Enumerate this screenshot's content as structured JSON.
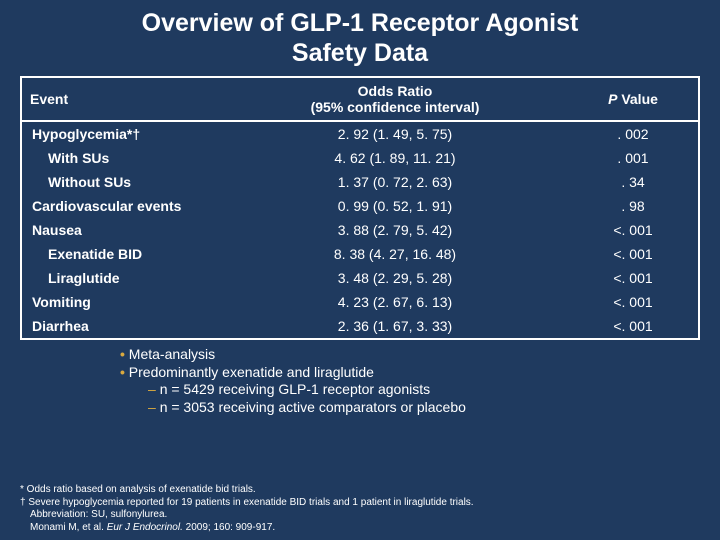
{
  "title_line1": "Overview of GLP-1 Receptor Agonist",
  "title_line2": "Safety Data",
  "table": {
    "headers": {
      "event": "Event",
      "or_line1": "Odds Ratio",
      "or_line2": "(95% confidence interval)",
      "p_prefix": "P",
      "p_suffix": " Value"
    },
    "rows": [
      {
        "event": "Hypoglycemia*†",
        "or": "2. 92 (1. 49, 5. 75)",
        "p": ". 002",
        "indent": 0
      },
      {
        "event": "With SUs",
        "or": "4. 62 (1. 89, 11. 21)",
        "p": ". 001",
        "indent": 1
      },
      {
        "event": "Without SUs",
        "or": "1. 37 (0. 72, 2. 63)",
        "p": ". 34",
        "indent": 1
      },
      {
        "event": "Cardiovascular events",
        "or": "0. 99 (0. 52, 1. 91)",
        "p": ". 98",
        "indent": 0
      },
      {
        "event": "Nausea",
        "or": "3. 88 (2. 79, 5. 42)",
        "p": "<. 001",
        "indent": 0
      },
      {
        "event": "Exenatide BID",
        "or": "8. 38 (4. 27, 16. 48)",
        "p": "<. 001",
        "indent": 1
      },
      {
        "event": "Liraglutide",
        "or": "3. 48 (2. 29, 5. 28)",
        "p": "<. 001",
        "indent": 1
      },
      {
        "event": "Vomiting",
        "or": "4. 23 (2. 67, 6. 13)",
        "p": "<. 001",
        "indent": 0
      },
      {
        "event": "Diarrhea",
        "or": "2. 36 (1. 67, 3. 33)",
        "p": "<. 001",
        "indent": 0
      }
    ]
  },
  "notes": {
    "b1": "Meta-analysis",
    "b2": "Predominantly exenatide and liraglutide",
    "d1": "n = 5429 receiving GLP-1 receptor agonists",
    "d2": "n = 3053 receiving active comparators or placebo"
  },
  "foot": {
    "l1": "* Odds ratio based on analysis of exenatide bid trials.",
    "l2": "† Severe hypoglycemia reported for 19 patients in exenatide BID trials and 1 patient in liraglutide trials.",
    "l3a": "Abbreviation: SU, sulfonylurea.",
    "l4a": "Monami M, et al. ",
    "l4b": "Eur J Endocrinol.",
    "l4c": " 2009; 160: 909-917."
  },
  "colors": {
    "background": "#1f3a5f",
    "text": "#ffffff",
    "accent": "#d9a93f",
    "border": "#ffffff"
  }
}
